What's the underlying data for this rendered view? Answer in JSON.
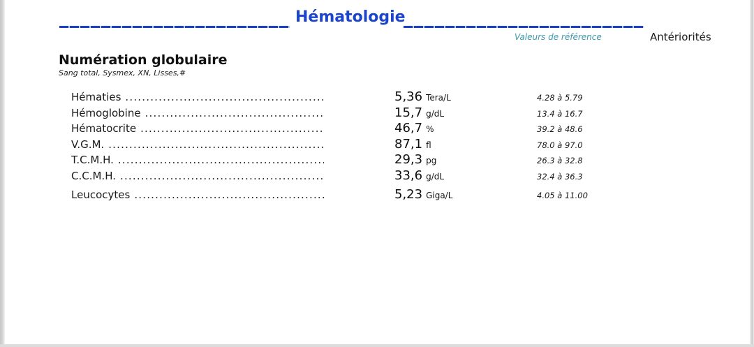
{
  "header": {
    "title": "Hématologie",
    "reference_column_header": "Valeurs de référence",
    "anteriorites_column_header": "Antériorités"
  },
  "section": {
    "title": "Numération globulaire",
    "subtitle": "Sang total, Sysmex, XN, Lisses,#"
  },
  "rows": [
    {
      "label": "Hématies",
      "value": "5,36",
      "unit": "Tera/L",
      "reference": "4.28 à 5.79"
    },
    {
      "label": "Hémoglobine",
      "value": "15,7",
      "unit": "g/dL",
      "reference": "13.4 à 16.7"
    },
    {
      "label": "Hématocrite",
      "value": "46,7",
      "unit": "%",
      "reference": "39.2 à 48.6"
    },
    {
      "label": "V.G.M.",
      "value": "87,1",
      "unit": "fl",
      "reference": "78.0 à 97.0"
    },
    {
      "label": "T.C.M.H.",
      "value": "29,3",
      "unit": "pg",
      "reference": "26.3 à 32.8"
    },
    {
      "label": "C.C.M.H.",
      "value": "33,6",
      "unit": "g/dL",
      "reference": "32.4 à 36.3"
    },
    {
      "label": "Leucocytes",
      "value": "5,23",
      "unit": "Giga/L",
      "reference": "4.05 à 11.00"
    }
  ],
  "colors": {
    "title_blue": "#1c45cc",
    "underline_blue": "#1b3fc4",
    "reference_teal": "#3b9aab",
    "text": "#1a1a1a"
  }
}
